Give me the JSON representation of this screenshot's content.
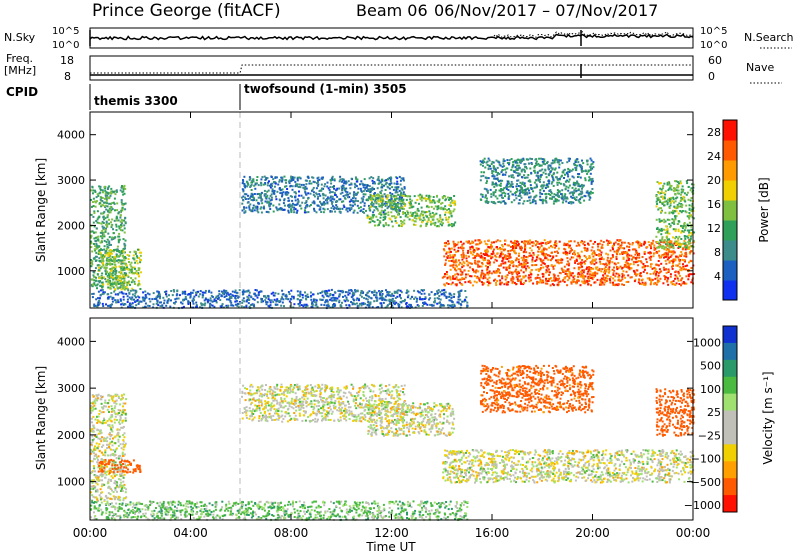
{
  "header": {
    "station": "Prince George (fitACF)",
    "beam": "Beam 06",
    "date_range": "06/Nov/2017 – 07/Nov/2017"
  },
  "nsky_panel": {
    "left_label": "N.Sky",
    "right_label": "N.Search",
    "left_ticks": [
      "10^5",
      "10^0"
    ],
    "right_ticks": [
      "10^5",
      "10^0"
    ]
  },
  "freq_panel": {
    "left_label_1": "Freq.",
    "left_label_2": "[MHz]",
    "left_ticks": [
      "18",
      "8"
    ],
    "right_label": "Nave",
    "right_ticks": [
      "60",
      "0"
    ]
  },
  "cpid": {
    "label": "CPID",
    "modes": [
      {
        "name": "themis 3300",
        "start_hour": 0
      },
      {
        "name": "twofsound (1-min) 3505",
        "start_hour": 6
      }
    ]
  },
  "chart_data": [
    {
      "type": "heatmap",
      "quantity": "Power",
      "ylabel": "Slant Range [km]",
      "xlabel": "Time UT",
      "ylim": [
        180,
        4500
      ],
      "y_ticks": [
        "1000",
        "2000",
        "3000",
        "4000"
      ],
      "x_ticks": [
        "00:00",
        "04:00",
        "08:00",
        "12:00",
        "16:00",
        "20:00",
        "00:00"
      ],
      "xlim_hours": [
        0,
        24
      ],
      "colorbar": {
        "label": "Power [dB]",
        "ticks": [
          "4",
          "8",
          "12",
          "16",
          "20",
          "24",
          "28"
        ],
        "range": [
          0,
          30
        ],
        "colors": [
          "#1030f0",
          "#1b5fc0",
          "#3c8c8c",
          "#2fa05a",
          "#80c040",
          "#f0d000",
          "#ff9a00",
          "#ff5a00",
          "#ff1000"
        ]
      },
      "echo_regions": [
        {
          "t0": 0.0,
          "t1": 1.4,
          "r0": 600,
          "r1": 2900,
          "power": 12
        },
        {
          "t0": 0.3,
          "t1": 2.0,
          "r0": 600,
          "r1": 1500,
          "power": 15
        },
        {
          "t0": 0.0,
          "t1": 15.0,
          "r0": 200,
          "r1": 600,
          "power": 6
        },
        {
          "t0": 6.0,
          "t1": 12.5,
          "r0": 2300,
          "r1": 3100,
          "power": 7
        },
        {
          "t0": 11.0,
          "t1": 14.5,
          "r0": 2000,
          "r1": 2700,
          "power": 14
        },
        {
          "t0": 14.0,
          "t1": 24.0,
          "r0": 700,
          "r1": 1700,
          "power": 25
        },
        {
          "t0": 15.5,
          "t1": 20.0,
          "r0": 2500,
          "r1": 3500,
          "power": 9
        },
        {
          "t0": 22.5,
          "t1": 24.0,
          "r0": 1500,
          "r1": 3000,
          "power": 14
        }
      ]
    },
    {
      "type": "heatmap",
      "quantity": "Velocity",
      "ylabel": "Slant Range [km]",
      "xlabel": "Time UT",
      "ylim": [
        180,
        4500
      ],
      "y_ticks": [
        "1000",
        "2000",
        "3000",
        "4000"
      ],
      "x_ticks": [
        "00:00",
        "04:00",
        "08:00",
        "12:00",
        "16:00",
        "20:00",
        "00:00"
      ],
      "xlim_hours": [
        0,
        24
      ],
      "colorbar": {
        "label": "Velocity [m s⁻¹]",
        "ticks": [
          "1000",
          "500",
          "100",
          "25",
          "−25",
          "−100",
          "−500",
          "−1000"
        ],
        "colors": [
          "#1030d0",
          "#1f6fa8",
          "#2a9a6a",
          "#4aba40",
          "#a0e070",
          "#c0c0b8",
          "#c0c0b8",
          "#f0d000",
          "#ffa000",
          "#ff5a00",
          "#ff1000"
        ]
      },
      "echo_regions": [
        {
          "t0": 0.0,
          "t1": 1.4,
          "r0": 600,
          "r1": 2900,
          "velocity": 0
        },
        {
          "t0": 0.3,
          "t1": 2.0,
          "r0": 1200,
          "r1": 1500,
          "velocity": -150
        },
        {
          "t0": 0.0,
          "t1": 15.0,
          "r0": 200,
          "r1": 600,
          "velocity": 60
        },
        {
          "t0": 6.0,
          "t1": 12.5,
          "r0": 2300,
          "r1": 3100,
          "velocity": 0
        },
        {
          "t0": 11.0,
          "t1": 14.5,
          "r0": 2000,
          "r1": 2700,
          "velocity": 0
        },
        {
          "t0": 14.0,
          "t1": 24.0,
          "r0": 1000,
          "r1": 1700,
          "velocity": 0
        },
        {
          "t0": 15.5,
          "t1": 20.0,
          "r0": 2500,
          "r1": 3500,
          "velocity": -150
        },
        {
          "t0": 22.5,
          "t1": 24.0,
          "r0": 2000,
          "r1": 3000,
          "velocity": -200
        }
      ]
    }
  ]
}
